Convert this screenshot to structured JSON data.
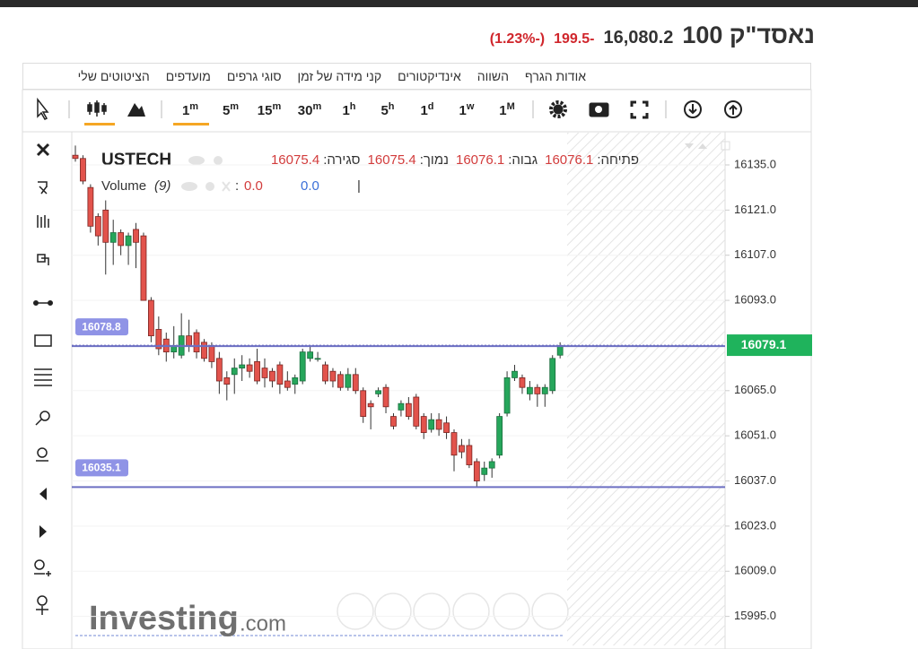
{
  "header": {
    "title": "נאסד\"ק 100",
    "price": {
      "value": 16080.2,
      "label": "16,080.2"
    },
    "change": -199.5,
    "change_pct": {
      "value": -1.23,
      "label": "(-1.23%)"
    }
  },
  "menu": [
    "אודות הגרף",
    "השווה",
    "אינדיקטורים",
    "קני מידה של זמן",
    "סוגי גרפים",
    "מועדפים",
    "הציטוטים שלי"
  ],
  "intervals": [
    {
      "n": "1",
      "u": "m"
    },
    {
      "n": "5",
      "u": "m"
    },
    {
      "n": "15",
      "u": "m"
    },
    {
      "n": "30",
      "u": "m"
    },
    {
      "n": "1",
      "u": "h"
    },
    {
      "n": "5",
      "u": "h"
    },
    {
      "n": "1",
      "u": "d"
    },
    {
      "n": "1",
      "u": "w"
    },
    {
      "n": "1",
      "u": "M"
    }
  ],
  "logo": {
    "brand": "Investing",
    "suffix": ".com"
  },
  "chart_data": {
    "type": "candlestick",
    "ticker": "USTECH",
    "ohlc_readout": [
      {
        "label": "פתיחה:",
        "value": 16076.1
      },
      {
        "label": "גבוה:",
        "value": 16076.1
      },
      {
        "label": "נמוך:",
        "value": 16075.4
      },
      {
        "label": "סגירה:",
        "value": 16075.4
      }
    ],
    "volume_readout": {
      "label": "Volume",
      "period": "(9)",
      "values": [
        {
          "value": 0,
          "label": "0.0"
        },
        {
          "value": 0,
          "label": "0.0"
        }
      ]
    },
    "candles": {
      "open": [
        16138,
        16137,
        16128,
        16119,
        16121,
        16111,
        16114,
        16110,
        16115,
        16113,
        16093,
        16084,
        16081,
        16077,
        16076,
        16082,
        16083,
        16080,
        16079,
        16075,
        16069,
        16070,
        16072,
        16073,
        16074,
        16072,
        16071,
        16073,
        16068,
        16067,
        16068,
        16075,
        16075,
        16073,
        16071,
        16070,
        16066,
        16070,
        16065,
        16061,
        16064,
        16066,
        16057,
        16059,
        16061,
        16063,
        16057,
        16053,
        16056,
        16055,
        16052,
        16048,
        16048,
        16043,
        16039,
        16041,
        16045,
        16058,
        16069,
        16069,
        16064,
        16066,
        16064,
        16065,
        16076
      ],
      "high": [
        16141,
        16138,
        16129,
        16120,
        16124,
        16118,
        16115,
        16114,
        16117,
        16114,
        16094,
        16088,
        16083,
        16085,
        16089,
        16087,
        16084,
        16081,
        16080,
        16077,
        16071,
        16075,
        16076,
        16075,
        16078,
        16075,
        16072,
        16074,
        16071,
        16070,
        16078,
        16079,
        16077,
        16074,
        16072,
        16071,
        16072,
        16072,
        16066,
        16062,
        16066,
        16067,
        16058,
        16062,
        16063,
        16064,
        16058,
        16058,
        16058,
        16057,
        16053,
        16050,
        16050,
        16044,
        16043,
        16044,
        16058,
        16071,
        16073,
        16070,
        16068,
        16067,
        16067,
        16076,
        16080
      ],
      "low": [
        16136,
        16129,
        16114,
        16110,
        16101,
        16104,
        16107,
        16104,
        16103,
        16093,
        16080,
        16076,
        16074,
        16075,
        16075,
        16077,
        16075,
        16074,
        16072,
        16064,
        16062,
        16064,
        16068,
        16069,
        16067,
        16066,
        16066,
        16064,
        16065,
        16064,
        16067,
        16074,
        16074,
        16067,
        16066,
        16065,
        16065,
        16064,
        16055,
        16053,
        16063,
        16058,
        16053,
        16057,
        16056,
        16053,
        16050,
        16052,
        16051,
        16050,
        16040,
        16044,
        16041,
        16035,
        16037,
        16038,
        16044,
        16057,
        16068,
        16064,
        16062,
        16060,
        16060,
        16064,
        16075
      ],
      "close": [
        16137,
        16130,
        16116,
        16113,
        16111,
        16114,
        16110,
        16113,
        16111,
        16093,
        16082,
        16078,
        16077,
        16079,
        16082,
        16079,
        16077,
        16075,
        16074,
        16068,
        16067,
        16072,
        16073,
        16071,
        16068,
        16069,
        16068,
        16067,
        16066,
        16069,
        16077,
        16077,
        16075,
        16068,
        16068,
        16066,
        16070,
        16065,
        16057,
        16060,
        16065,
        16060,
        16054,
        16061,
        16057,
        16054,
        16052,
        16056,
        16053,
        16052,
        16045,
        16046,
        16042,
        16037,
        16041,
        16043,
        16057,
        16069,
        16071,
        16066,
        16066,
        16064,
        16066,
        16075,
        16079
      ]
    },
    "up_color": "#26a65b",
    "down_color": "#e2534c",
    "current_price": {
      "value": 16079.1,
      "label": "16079.1"
    },
    "current_color": "#1fb35c",
    "hlines": [
      16078.8,
      16035.1
    ],
    "hline_color": "#6c6fc2",
    "ylim": [
      15986,
      16145
    ],
    "yticks": [
      {
        "value": 16135,
        "label": "16135.0"
      },
      {
        "value": 16121,
        "label": "16121.0"
      },
      {
        "value": 16107,
        "label": "16107.0"
      },
      {
        "value": 16093,
        "label": "16093.0"
      },
      {
        "value": 16065,
        "label": "16065.0"
      },
      {
        "value": 16051,
        "label": "16051.0"
      },
      {
        "value": 16037,
        "label": "16037.0"
      },
      {
        "value": 16023,
        "label": "16023.0"
      },
      {
        "value": 16009,
        "label": "16009.0"
      },
      {
        "value": 15995,
        "label": "15995.0"
      }
    ],
    "grid": true
  }
}
